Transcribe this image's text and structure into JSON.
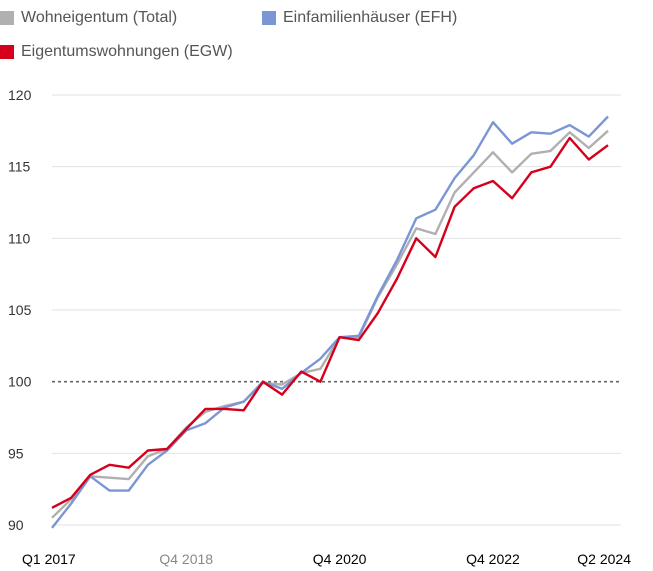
{
  "chart_data": {
    "type": "line",
    "title": "",
    "xlabel": "",
    "ylabel": "",
    "ylim": [
      90,
      120
    ],
    "yticks": [
      90,
      95,
      100,
      105,
      110,
      115,
      120
    ],
    "reference_line": 100,
    "grid": "horizontal",
    "legend_position": "top",
    "x": [
      "Q1 2017",
      "Q2 2017",
      "Q3 2017",
      "Q4 2017",
      "Q1 2018",
      "Q2 2018",
      "Q3 2018",
      "Q4 2018",
      "Q1 2019",
      "Q2 2019",
      "Q3 2019",
      "Q4 2019",
      "Q1 2020",
      "Q2 2020",
      "Q3 2020",
      "Q4 2020",
      "Q1 2021",
      "Q2 2021",
      "Q3 2021",
      "Q4 2021",
      "Q1 2022",
      "Q2 2022",
      "Q3 2022",
      "Q4 2022",
      "Q1 2023",
      "Q2 2023",
      "Q3 2023",
      "Q4 2023",
      "Q1 2024",
      "Q2 2024"
    ],
    "x_tick_labels": [
      {
        "label": "Q1 2017",
        "index": 0,
        "color": "#000000"
      },
      {
        "label": "Q4 2018",
        "index": 7,
        "color": "#888888"
      },
      {
        "label": "Q4 2020",
        "index": 15,
        "color": "#000000"
      },
      {
        "label": "Q4 2022",
        "index": 23,
        "color": "#000000"
      },
      {
        "label": "Q2 2024",
        "index": 29,
        "color": "#000000"
      }
    ],
    "series": [
      {
        "name": "Wohneigentum (Total)",
        "color": "#b0b0b0",
        "values": [
          90.5,
          91.8,
          93.4,
          93.3,
          93.2,
          94.8,
          95.3,
          96.8,
          97.9,
          98.3,
          98.6,
          99.9,
          99.8,
          100.6,
          100.9,
          103.1,
          103.1,
          105.9,
          108.2,
          110.7,
          110.3,
          113.2,
          114.6,
          116.0,
          114.6,
          115.9,
          116.1,
          117.4,
          116.3,
          117.5
        ]
      },
      {
        "name": "Einfamilienhäuser (EFH)",
        "color": "#7b96d4",
        "values": [
          89.8,
          91.5,
          93.4,
          92.4,
          92.4,
          94.2,
          95.2,
          96.6,
          97.1,
          98.2,
          98.6,
          100.0,
          99.5,
          100.6,
          101.6,
          103.1,
          103.2,
          106.0,
          108.5,
          111.4,
          112.0,
          114.2,
          115.8,
          118.1,
          116.6,
          117.4,
          117.3,
          117.9,
          117.1,
          118.5
        ]
      },
      {
        "name": "Eigentumswohnungen (EGW)",
        "color": "#d5001c",
        "values": [
          91.2,
          91.9,
          93.5,
          94.2,
          94.0,
          95.2,
          95.3,
          96.7,
          98.1,
          98.1,
          98.0,
          100.0,
          99.1,
          100.7,
          100.0,
          103.1,
          102.9,
          104.8,
          107.2,
          110.0,
          108.7,
          112.2,
          113.5,
          114.0,
          112.8,
          114.6,
          115.0,
          117.0,
          115.5,
          116.5
        ]
      }
    ]
  }
}
